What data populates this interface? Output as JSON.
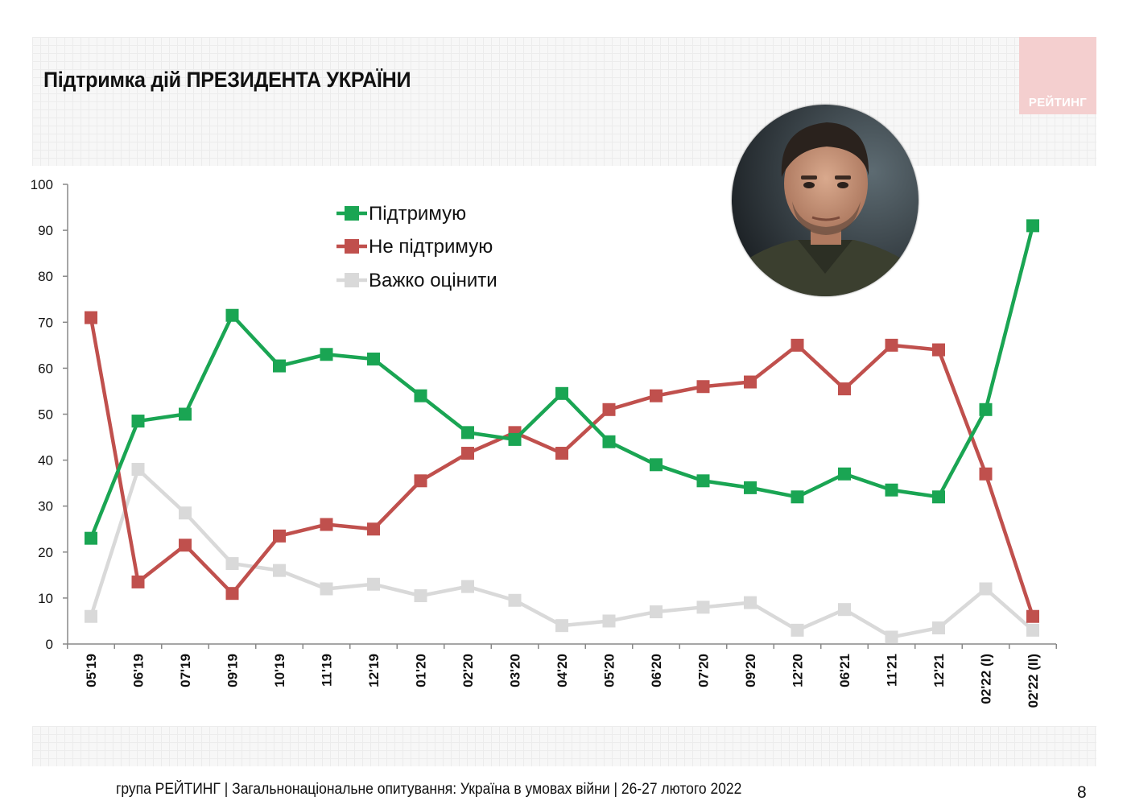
{
  "page": {
    "title": "Підтримка дій ПРЕЗИДЕНТА УКРАЇНИ",
    "logo_text": "РЕЙТИНГ",
    "footer": "група РЕЙТИНГ | Загальнонаціональне опитування: Україна в умовах війни | 26-27 лютого 2022",
    "page_number": "8"
  },
  "chart_data": {
    "type": "line",
    "categories": [
      "05'19",
      "06'19",
      "07'19",
      "09'19",
      "10'19",
      "11'19",
      "12'19",
      "01'20",
      "02'20",
      "03'20",
      "04'20",
      "05'20",
      "06'20",
      "07'20",
      "09'20",
      "12'20",
      "06'21",
      "11'21",
      "12'21",
      "02'22 (I)",
      "02'22 (II)"
    ],
    "ylim": [
      0,
      100
    ],
    "yticks": [
      0,
      10,
      20,
      30,
      40,
      50,
      60,
      70,
      80,
      90,
      100
    ],
    "legend_position": "top-center",
    "grid": false,
    "series": [
      {
        "name": "Підтримую",
        "color": "#1aa553",
        "values": [
          23,
          48.5,
          50,
          71.5,
          60.5,
          63,
          62,
          54,
          46,
          44.5,
          54.5,
          44,
          39,
          35.5,
          34,
          32,
          37,
          33.5,
          32,
          51,
          91
        ]
      },
      {
        "name": "Не підтримую",
        "color": "#c0504d",
        "values": [
          71,
          13.5,
          21.5,
          11,
          23.5,
          26,
          25,
          35.5,
          41.5,
          46,
          41.5,
          51,
          54,
          56,
          57,
          65,
          55.5,
          65,
          64,
          37,
          6
        ]
      },
      {
        "name": "Важко оцінити",
        "color": "#d9d9d9",
        "values": [
          6,
          38,
          28.5,
          17.5,
          16,
          12,
          13,
          10.5,
          12.5,
          9.5,
          4,
          5,
          7,
          8,
          9,
          3,
          7.5,
          1.5,
          3.5,
          12,
          3
        ]
      }
    ]
  }
}
